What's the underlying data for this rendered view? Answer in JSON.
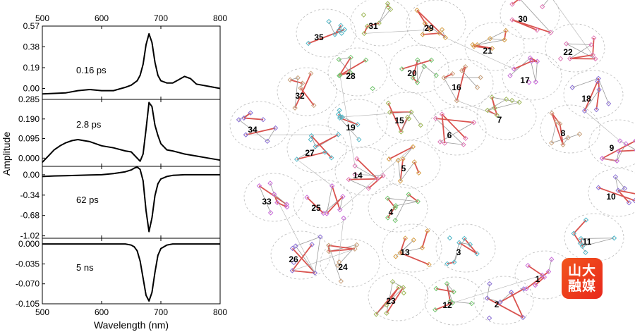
{
  "chart_data": [
    {
      "type": "line",
      "panel": "0.16 ps",
      "xlabel": "Wavelength (nm)",
      "ylabel": "Amplitude",
      "top_axis_ticks": [
        "500",
        "600",
        "700",
        "800"
      ],
      "xlim": [
        500,
        800
      ],
      "ylim": [
        -0.1,
        0.57
      ],
      "yticks": [
        "0.57",
        "0.38",
        "0.19",
        "0.00"
      ],
      "series": [
        {
          "x": [
            500,
            520,
            540,
            560,
            580,
            600,
            620,
            640,
            650,
            660,
            665,
            670,
            675,
            680,
            685,
            690,
            695,
            700,
            710,
            720,
            730,
            740,
            750,
            760,
            780,
            800
          ],
          "values": [
            -0.05,
            -0.045,
            -0.04,
            -0.02,
            -0.01,
            -0.02,
            -0.02,
            0.01,
            0.03,
            0.07,
            0.12,
            0.22,
            0.4,
            0.5,
            0.42,
            0.24,
            0.12,
            0.07,
            0.05,
            0.05,
            0.08,
            0.11,
            0.09,
            0.04,
            0.02,
            0.0
          ]
        }
      ]
    },
    {
      "type": "line",
      "panel": "2.8 ps",
      "xlim": [
        500,
        800
      ],
      "ylim": [
        -0.04,
        0.285
      ],
      "yticks": [
        "0.285",
        "0.190",
        "0.095",
        "0.000"
      ],
      "series": [
        {
          "x": [
            500,
            510,
            520,
            530,
            540,
            550,
            560,
            570,
            580,
            600,
            620,
            640,
            650,
            660,
            665,
            670,
            675,
            680,
            685,
            690,
            695,
            700,
            710,
            720,
            740,
            760,
            780,
            800
          ],
          "values": [
            -0.02,
            0.01,
            0.04,
            0.06,
            0.075,
            0.085,
            0.09,
            0.085,
            0.08,
            0.06,
            0.05,
            0.035,
            0.03,
            0.0,
            -0.015,
            0.02,
            0.14,
            0.27,
            0.25,
            0.16,
            0.11,
            0.07,
            0.04,
            0.035,
            0.02,
            0.01,
            0.0,
            -0.01
          ]
        }
      ]
    },
    {
      "type": "line",
      "panel": "62 ps",
      "xlim": [
        500,
        800
      ],
      "ylim": [
        -1.06,
        0.14
      ],
      "yticks": [
        "0.00",
        "-0.34",
        "-0.68",
        "-1.02"
      ],
      "series": [
        {
          "x": [
            500,
            520,
            540,
            560,
            580,
            600,
            620,
            640,
            650,
            655,
            660,
            665,
            670,
            675,
            680,
            685,
            690,
            695,
            700,
            710,
            720,
            740,
            760,
            780,
            800
          ],
          "values": [
            -0.03,
            -0.02,
            -0.015,
            -0.01,
            -0.005,
            0.0,
            0.02,
            0.05,
            0.08,
            0.11,
            0.13,
            0.09,
            -0.1,
            -0.6,
            -0.95,
            -0.72,
            -0.35,
            -0.15,
            -0.07,
            -0.03,
            -0.01,
            0.0,
            0.0,
            0.0,
            0.0
          ]
        }
      ]
    },
    {
      "type": "line",
      "panel": "5 ns",
      "xlim": [
        500,
        800
      ],
      "ylim": [
        -0.105,
        0.01
      ],
      "yticks": [
        "0.000",
        "-0.035",
        "-0.070",
        "-0.105"
      ],
      "series": [
        {
          "x": [
            500,
            520,
            540,
            560,
            580,
            600,
            620,
            640,
            650,
            655,
            660,
            665,
            670,
            675,
            680,
            685,
            690,
            695,
            700,
            710,
            720,
            740,
            760,
            780,
            800
          ],
          "values": [
            0.0,
            0.0,
            0.0,
            0.0,
            0.0,
            0.0,
            0.0,
            0.0,
            -0.002,
            -0.005,
            -0.012,
            -0.03,
            -0.06,
            -0.09,
            -0.1,
            -0.085,
            -0.05,
            -0.02,
            -0.008,
            -0.002,
            0.0,
            0.0,
            0.0,
            0.0,
            0.0
          ]
        }
      ]
    }
  ],
  "bottom_axis": {
    "ticks": [
      "500",
      "600",
      "700",
      "800"
    ],
    "label": "Wavelength (nm)"
  },
  "network": {
    "clusters": [
      "1",
      "2",
      "3",
      "4",
      "5",
      "6",
      "7",
      "8",
      "9",
      "10",
      "11",
      "12",
      "13",
      "14",
      "15",
      "16",
      "17",
      "18",
      "19",
      "20",
      "21",
      "22",
      "23",
      "24",
      "25",
      "26",
      "27",
      "28",
      "29",
      "30",
      "31",
      "32",
      "33",
      "34",
      "35"
    ]
  },
  "logo": {
    "text": "山大融媒",
    "color": "#f2461c"
  }
}
